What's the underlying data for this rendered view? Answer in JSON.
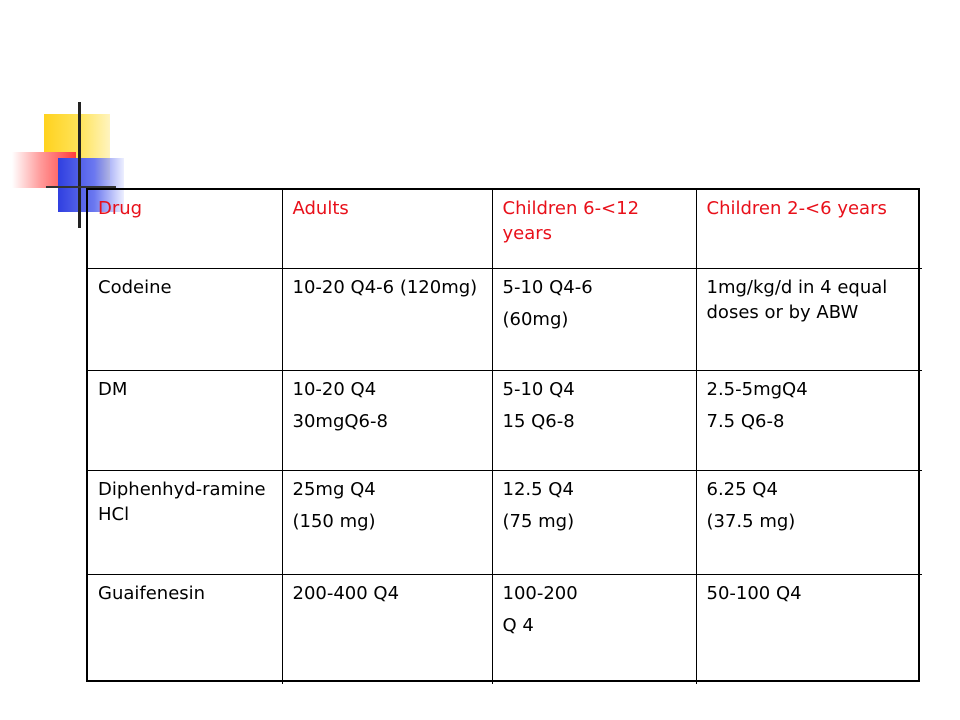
{
  "table": {
    "headers": [
      "Drug",
      "Adults",
      "Children 6-<12 years",
      "Children 2-<6 years"
    ],
    "rows": [
      {
        "drug": "Codeine",
        "adults": [
          "10-20 Q4-6 (120mg)"
        ],
        "children_6_12": [
          "5-10 Q4-6",
          "(60mg)"
        ],
        "children_2_6": [
          "1mg/kg/d in 4 equal doses or by ABW"
        ]
      },
      {
        "drug": "DM",
        "adults": [
          "10-20 Q4",
          "30mgQ6-8"
        ],
        "children_6_12": [
          "5-10 Q4",
          "15 Q6-8"
        ],
        "children_2_6": [
          "2.5-5mgQ4",
          "7.5 Q6-8"
        ]
      },
      {
        "drug": "Diphenhyd-ramine HCl",
        "adults": [
          "25mg Q4",
          "(150 mg)"
        ],
        "children_6_12": [
          "12.5 Q4",
          "(75 mg)"
        ],
        "children_2_6": [
          "6.25 Q4",
          "(37.5 mg)"
        ]
      },
      {
        "drug": "Guaifenesin",
        "adults": [
          "200-400 Q4"
        ],
        "children_6_12": [
          "100-200",
          "Q 4"
        ],
        "children_2_6": [
          "50-100 Q4"
        ]
      }
    ]
  },
  "colors": {
    "header_text": "#e8101a",
    "body_text": "#000000",
    "border": "#000000"
  }
}
